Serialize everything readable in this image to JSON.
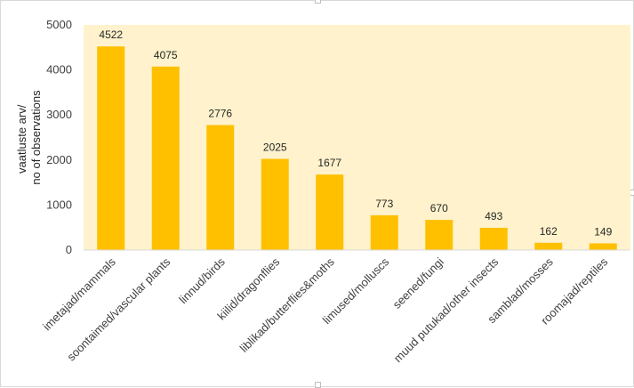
{
  "chart_data": {
    "type": "bar",
    "categories": [
      "imetajad/mammals",
      "soontaimed/vascular plants",
      "linnud/birds",
      "kiilid/dragonflies",
      "liblikad/butterflies&moths",
      "limused/molluscs",
      "seened/fungi",
      "muud putukad/other insects",
      "samblad/mosses",
      "roomajad/reptiles"
    ],
    "values": [
      4522,
      4075,
      2776,
      2025,
      1677,
      773,
      670,
      493,
      162,
      149
    ],
    "data_labels": [
      "4522",
      "4075",
      "2776",
      "2025",
      "1677",
      "773",
      "670",
      "493",
      "162",
      "149"
    ],
    "ylabel_lines": [
      "vaatluste arv/",
      "no of observations"
    ],
    "yticks": [
      "0",
      "1000",
      "2000",
      "3000",
      "4000",
      "5000"
    ],
    "ylim": [
      0,
      5000
    ],
    "grid": false,
    "legend": "none",
    "colors": {
      "bar": "#ffc000",
      "plot_background": "#fff2cc",
      "axis_line": "#d9d9d9"
    }
  }
}
